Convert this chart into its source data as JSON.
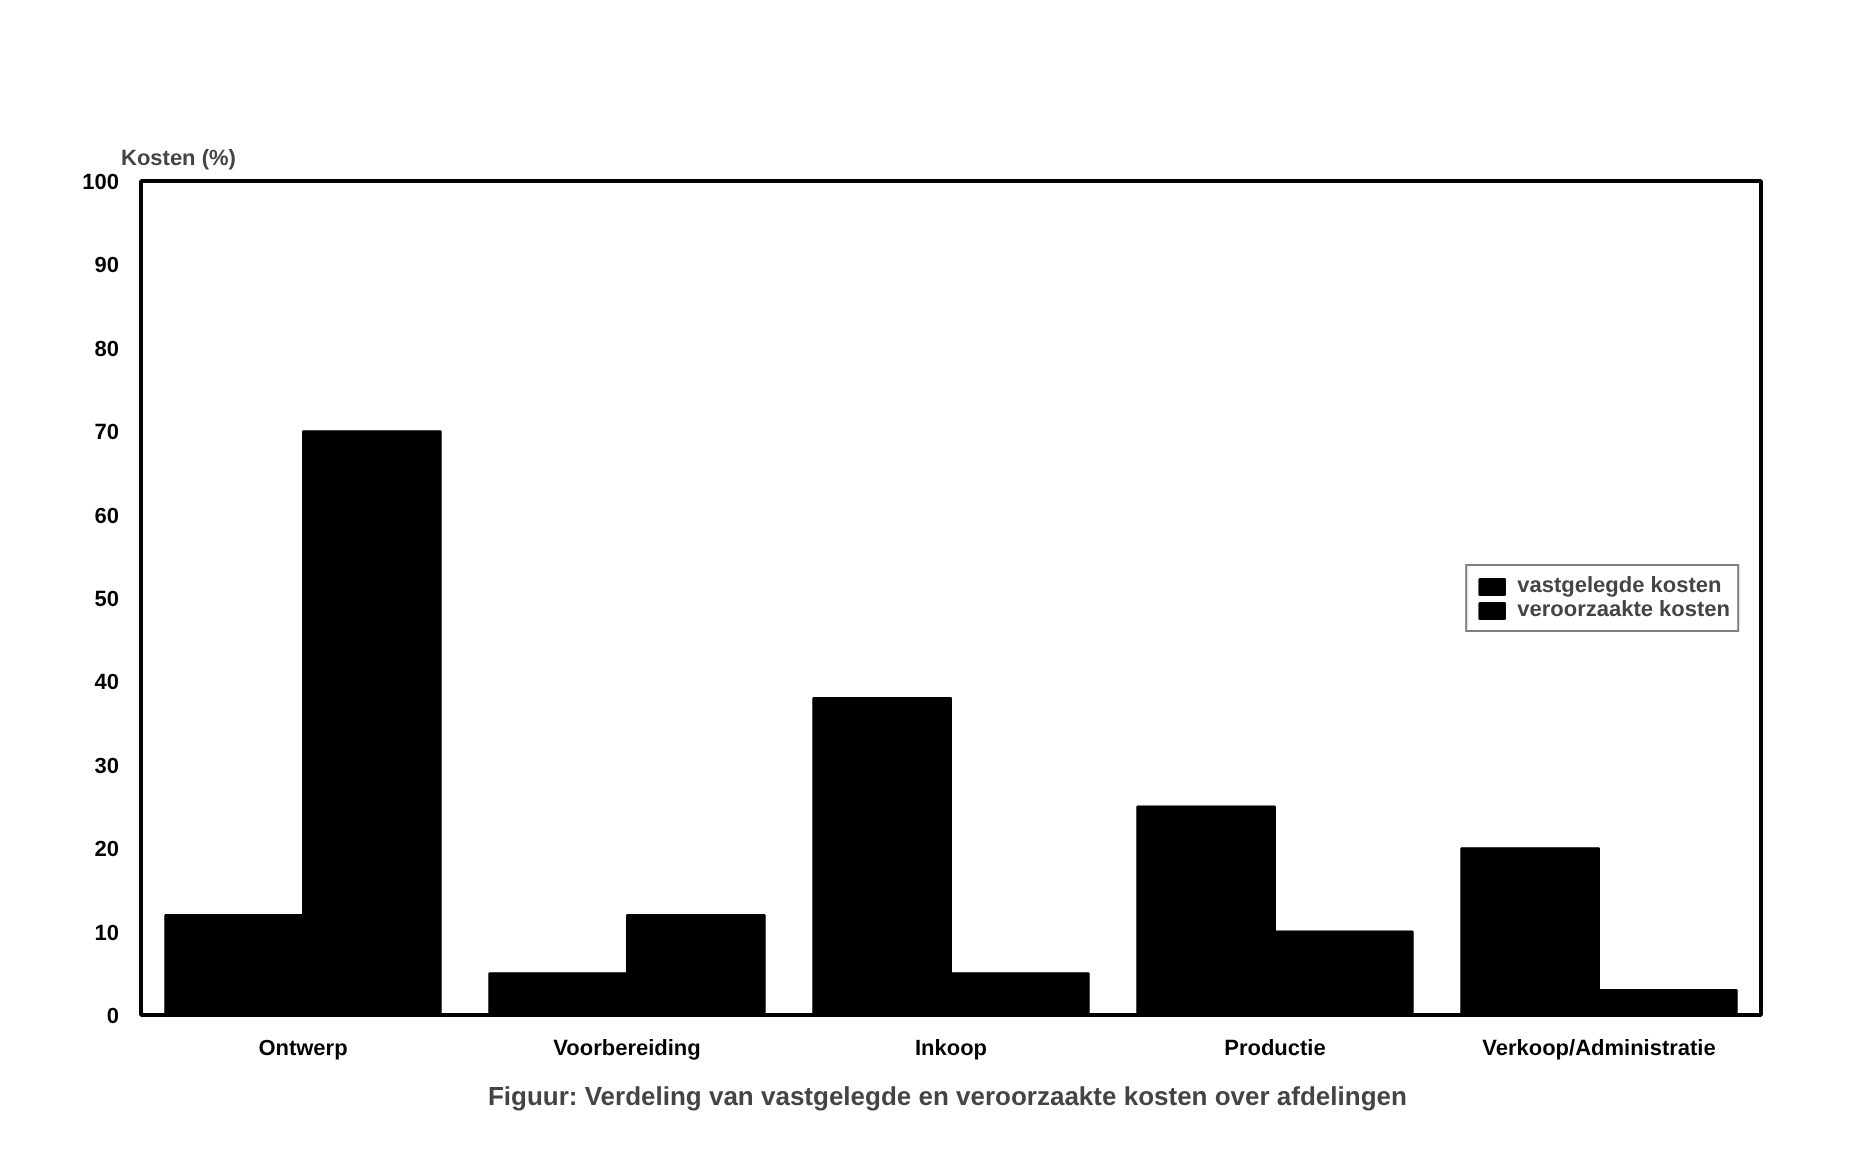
{
  "chart_data": {
    "type": "bar",
    "ylabel": "Kosten (%)",
    "categories": [
      "Ontwerp",
      "Voorbereiding",
      "Inkoop",
      "Productie",
      "Verkoop/Administratie"
    ],
    "series": [
      {
        "name": "vastgelegde kosten",
        "color": "#000000",
        "values": [
          12,
          5,
          38,
          25,
          20
        ]
      },
      {
        "name": "veroorzaakte kosten",
        "color": "#000000",
        "values": [
          70,
          12,
          5,
          10,
          3
        ]
      }
    ],
    "ylim": [
      0,
      100
    ],
    "yticks": [
      0,
      10,
      20,
      30,
      40,
      50,
      60,
      70,
      80,
      90,
      100
    ],
    "grid": false,
    "legend": "right",
    "annotations": [
      "Figuur:  Verdeling van vastgelegde en veroorzaakte kosten over afdelingen"
    ]
  }
}
